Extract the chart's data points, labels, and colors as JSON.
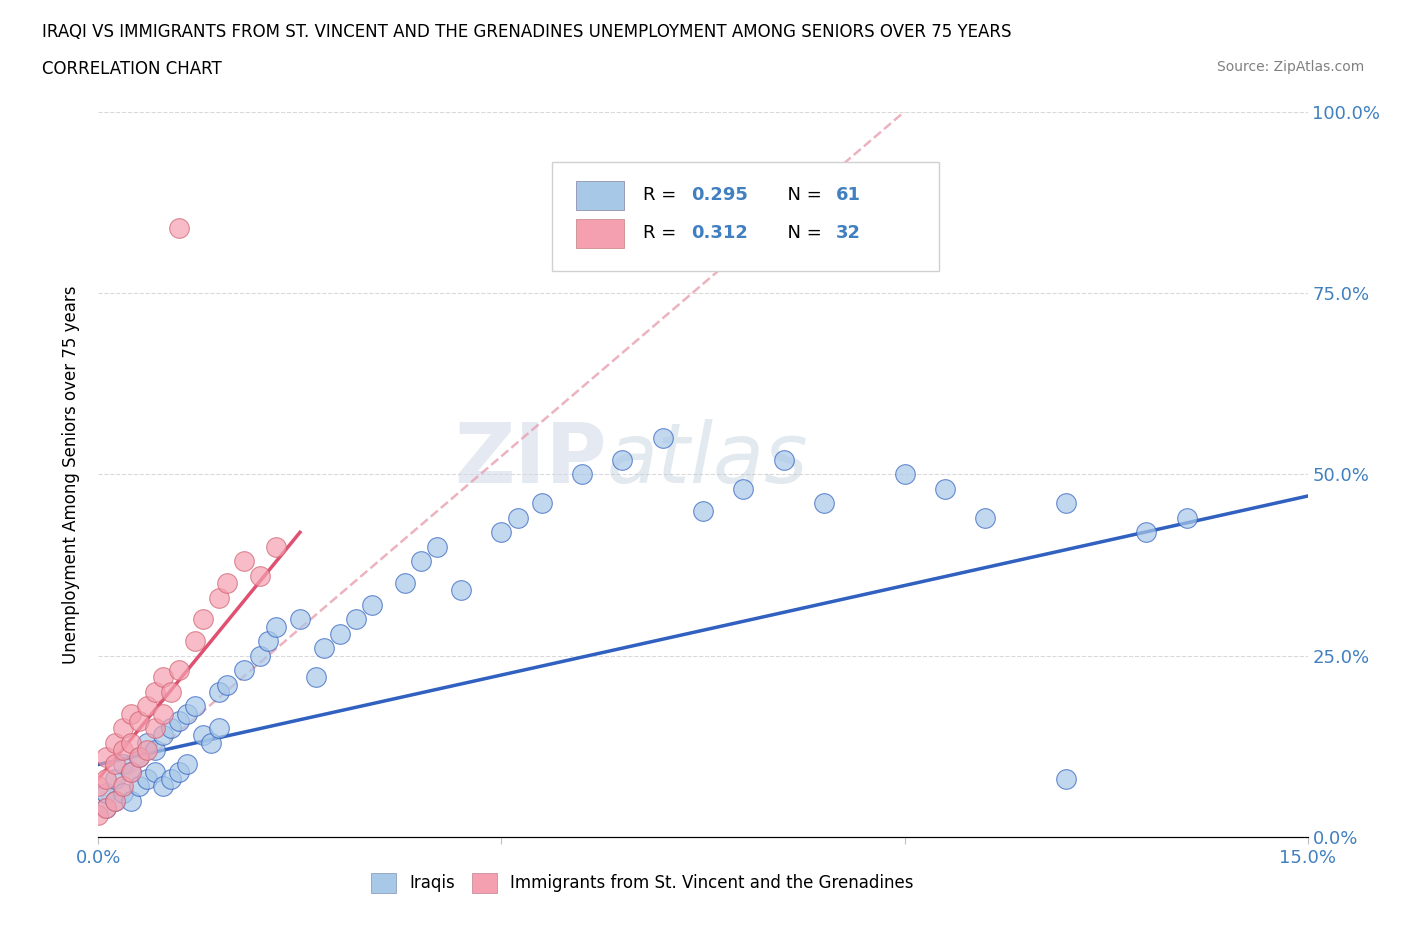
{
  "title_line1": "IRAQI VS IMMIGRANTS FROM ST. VINCENT AND THE GRENADINES UNEMPLOYMENT AMONG SENIORS OVER 75 YEARS",
  "title_line2": "CORRELATION CHART",
  "source": "Source: ZipAtlas.com",
  "ylabel": "Unemployment Among Seniors over 75 years",
  "xlim": [
    0.0,
    0.15
  ],
  "ylim": [
    0.0,
    1.0
  ],
  "color_iraqi": "#a8c8e8",
  "color_svg": "#f4a0b0",
  "color_iraqi_line": "#3060c0",
  "color_svg_line": "#e06080",
  "watermark_zip": "ZIP",
  "watermark_atlas": "atlas",
  "iraqi_x": [
    0.001,
    0.002,
    0.003,
    0.003,
    0.004,
    0.004,
    0.005,
    0.005,
    0.006,
    0.006,
    0.007,
    0.007,
    0.008,
    0.008,
    0.009,
    0.009,
    0.01,
    0.01,
    0.011,
    0.011,
    0.012,
    0.012,
    0.013,
    0.014,
    0.015,
    0.015,
    0.016,
    0.017,
    0.018,
    0.019,
    0.02,
    0.021,
    0.022,
    0.025,
    0.027,
    0.028,
    0.03,
    0.032,
    0.033,
    0.035,
    0.038,
    0.04,
    0.042,
    0.043,
    0.045,
    0.05,
    0.052,
    0.055,
    0.06,
    0.065,
    0.07,
    0.075,
    0.08,
    0.085,
    0.09,
    0.1,
    0.105,
    0.11,
    0.12,
    0.122,
    0.13
  ],
  "iraqi_y": [
    0.05,
    0.06,
    0.08,
    0.05,
    0.06,
    0.09,
    0.07,
    0.1,
    0.08,
    0.12,
    0.09,
    0.11,
    0.07,
    0.13,
    0.08,
    0.14,
    0.09,
    0.15,
    0.1,
    0.16,
    0.11,
    0.17,
    0.18,
    0.13,
    0.19,
    0.14,
    0.2,
    0.21,
    0.22,
    0.24,
    0.25,
    0.27,
    0.28,
    0.3,
    0.32,
    0.25,
    0.28,
    0.3,
    0.32,
    0.34,
    0.36,
    0.38,
    0.4,
    0.32,
    0.34,
    0.4,
    0.42,
    0.44,
    0.46,
    0.5,
    0.52,
    0.54,
    0.55,
    0.45,
    0.5,
    0.55,
    0.48,
    0.5,
    0.08,
    0.1,
    0.45
  ],
  "svg_x": [
    0.0,
    0.0,
    0.001,
    0.001,
    0.001,
    0.002,
    0.002,
    0.002,
    0.003,
    0.003,
    0.003,
    0.004,
    0.004,
    0.004,
    0.005,
    0.005,
    0.005,
    0.006,
    0.006,
    0.006,
    0.007,
    0.007,
    0.008,
    0.008,
    0.009,
    0.01,
    0.01,
    0.012,
    0.015,
    0.016,
    0.02,
    0.01
  ],
  "svg_y": [
    0.05,
    0.08,
    0.05,
    0.07,
    0.1,
    0.06,
    0.09,
    0.12,
    0.08,
    0.11,
    0.14,
    0.09,
    0.12,
    0.15,
    0.1,
    0.13,
    0.17,
    0.11,
    0.14,
    0.18,
    0.16,
    0.2,
    0.18,
    0.22,
    0.2,
    0.22,
    0.25,
    0.3,
    0.35,
    0.36,
    0.36,
    0.85
  ],
  "iraqi_line_x": [
    0.0,
    0.15
  ],
  "iraqi_line_y": [
    0.1,
    0.47
  ],
  "svg_line_x": [
    0.0,
    0.04
  ],
  "svg_line_y": [
    0.05,
    0.42
  ]
}
